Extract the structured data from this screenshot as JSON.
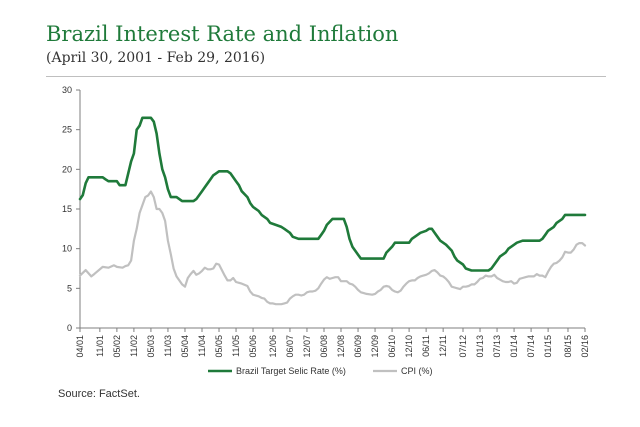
{
  "title": "Brazil Interest Rate and Inflation",
  "subtitle": "(April 30, 2001 - Feb 29, 2016)",
  "source": "Source: FactSet.",
  "colors": {
    "selic": "#1f7a3a",
    "cpi": "#c0c0c0",
    "title": "#1f7a3a",
    "axis": "#7f7f7f"
  },
  "chart_data": {
    "type": "line",
    "ylim": [
      0,
      30
    ],
    "yticks": [
      0,
      5,
      10,
      15,
      20,
      25,
      30
    ],
    "xlim": [
      "04/01",
      "02/16"
    ],
    "xticks": [
      "04/01",
      "11/01",
      "05/02",
      "11/02",
      "05/03",
      "11/03",
      "05/04",
      "11/04",
      "05/05",
      "11/05",
      "05/06",
      "12/06",
      "06/07",
      "12/07",
      "06/08",
      "12/08",
      "06/09",
      "12/09",
      "06/10",
      "12/10",
      "06/11",
      "12/11",
      "07/12",
      "01/13",
      "07/13",
      "01/14",
      "07/14",
      "01/15",
      "08/15",
      "02/16"
    ],
    "legend_position": "bottom",
    "grid": false,
    "series": [
      {
        "name": "Brazil Target Selic Rate (%)",
        "color": "#1f7a3a",
        "points": [
          [
            "04/01",
            16.25
          ],
          [
            "05/01",
            16.75
          ],
          [
            "06/01",
            18.25
          ],
          [
            "07/01",
            19.0
          ],
          [
            "10/01",
            19.0
          ],
          [
            "12/01",
            19.0
          ],
          [
            "01/02",
            18.75
          ],
          [
            "02/02",
            18.5
          ],
          [
            "05/02",
            18.5
          ],
          [
            "06/02",
            18.0
          ],
          [
            "08/02",
            18.0
          ],
          [
            "10/02",
            21.0
          ],
          [
            "11/02",
            22.0
          ],
          [
            "12/02",
            25.0
          ],
          [
            "01/03",
            25.5
          ],
          [
            "02/03",
            26.5
          ],
          [
            "05/03",
            26.5
          ],
          [
            "06/03",
            26.0
          ],
          [
            "07/03",
            24.5
          ],
          [
            "08/03",
            22.0
          ],
          [
            "09/03",
            20.0
          ],
          [
            "10/03",
            19.0
          ],
          [
            "11/03",
            17.5
          ],
          [
            "12/03",
            16.5
          ],
          [
            "02/04",
            16.5
          ],
          [
            "03/04",
            16.25
          ],
          [
            "04/04",
            16.0
          ],
          [
            "08/04",
            16.0
          ],
          [
            "09/04",
            16.25
          ],
          [
            "10/04",
            16.75
          ],
          [
            "11/04",
            17.25
          ],
          [
            "12/04",
            17.75
          ],
          [
            "01/05",
            18.25
          ],
          [
            "02/05",
            18.75
          ],
          [
            "03/05",
            19.25
          ],
          [
            "04/05",
            19.5
          ],
          [
            "05/05",
            19.75
          ],
          [
            "08/05",
            19.75
          ],
          [
            "09/05",
            19.5
          ],
          [
            "10/05",
            19.0
          ],
          [
            "11/05",
            18.5
          ],
          [
            "12/05",
            18.0
          ],
          [
            "01/06",
            17.25
          ],
          [
            "03/06",
            16.5
          ],
          [
            "04/06",
            15.75
          ],
          [
            "05/06",
            15.25
          ],
          [
            "07/06",
            14.75
          ],
          [
            "08/06",
            14.25
          ],
          [
            "10/06",
            13.75
          ],
          [
            "11/06",
            13.25
          ],
          [
            "01/07",
            13.0
          ],
          [
            "03/07",
            12.75
          ],
          [
            "04/07",
            12.5
          ],
          [
            "06/07",
            12.0
          ],
          [
            "07/07",
            11.5
          ],
          [
            "09/07",
            11.25
          ],
          [
            "04/08",
            11.25
          ],
          [
            "05/08",
            11.75
          ],
          [
            "06/08",
            12.25
          ],
          [
            "07/08",
            13.0
          ],
          [
            "09/08",
            13.75
          ],
          [
            "01/09",
            13.75
          ],
          [
            "02/09",
            12.75
          ],
          [
            "03/09",
            11.25
          ],
          [
            "04/09",
            10.25
          ],
          [
            "06/09",
            9.25
          ],
          [
            "07/09",
            8.75
          ],
          [
            "03/10",
            8.75
          ],
          [
            "04/10",
            9.5
          ],
          [
            "06/10",
            10.25
          ],
          [
            "07/10",
            10.75
          ],
          [
            "12/10",
            10.75
          ],
          [
            "01/11",
            11.25
          ],
          [
            "03/11",
            11.75
          ],
          [
            "04/11",
            12.0
          ],
          [
            "06/11",
            12.25
          ],
          [
            "07/11",
            12.5
          ],
          [
            "08/11",
            12.5
          ],
          [
            "09/11",
            12.0
          ],
          [
            "10/11",
            11.5
          ],
          [
            "11/11",
            11.0
          ],
          [
            "01/12",
            10.5
          ],
          [
            "03/12",
            9.75
          ],
          [
            "04/12",
            9.0
          ],
          [
            "05/12",
            8.5
          ],
          [
            "07/12",
            8.0
          ],
          [
            "08/12",
            7.5
          ],
          [
            "10/12",
            7.25
          ],
          [
            "04/13",
            7.25
          ],
          [
            "05/13",
            7.5
          ],
          [
            "07/13",
            8.5
          ],
          [
            "08/13",
            9.0
          ],
          [
            "10/13",
            9.5
          ],
          [
            "11/13",
            10.0
          ],
          [
            "01/14",
            10.5
          ],
          [
            "02/14",
            10.75
          ],
          [
            "04/14",
            11.0
          ],
          [
            "10/14",
            11.0
          ],
          [
            "11/14",
            11.25
          ],
          [
            "12/14",
            11.75
          ],
          [
            "01/15",
            12.25
          ],
          [
            "03/15",
            12.75
          ],
          [
            "04/15",
            13.25
          ],
          [
            "06/15",
            13.75
          ],
          [
            "07/15",
            14.25
          ],
          [
            "02/16",
            14.25
          ]
        ]
      },
      {
        "name": "CPI (%)",
        "color": "#c0c0c0",
        "points": [
          [
            "04/01",
            6.6
          ],
          [
            "06/01",
            7.3
          ],
          [
            "08/01",
            6.5
          ],
          [
            "09/01",
            6.8
          ],
          [
            "10/01",
            7.1
          ],
          [
            "12/01",
            7.7
          ],
          [
            "02/02",
            7.6
          ],
          [
            "04/02",
            7.9
          ],
          [
            "05/02",
            7.7
          ],
          [
            "07/02",
            7.6
          ],
          [
            "08/02",
            7.8
          ],
          [
            "09/02",
            7.9
          ],
          [
            "10/02",
            8.5
          ],
          [
            "11/02",
            11.0
          ],
          [
            "12/02",
            12.5
          ],
          [
            "01/03",
            14.5
          ],
          [
            "03/03",
            16.5
          ],
          [
            "04/03",
            16.7
          ],
          [
            "05/03",
            17.2
          ],
          [
            "06/03",
            16.5
          ],
          [
            "07/03",
            15.0
          ],
          [
            "08/03",
            15.0
          ],
          [
            "09/03",
            14.5
          ],
          [
            "10/03",
            13.5
          ],
          [
            "11/03",
            11.0
          ],
          [
            "12/03",
            9.3
          ],
          [
            "01/04",
            7.5
          ],
          [
            "02/04",
            6.5
          ],
          [
            "03/04",
            6.0
          ],
          [
            "04/04",
            5.5
          ],
          [
            "05/04",
            5.2
          ],
          [
            "06/04",
            6.3
          ],
          [
            "07/04",
            6.8
          ],
          [
            "08/04",
            7.2
          ],
          [
            "09/04",
            6.7
          ],
          [
            "10/04",
            6.9
          ],
          [
            "11/04",
            7.2
          ],
          [
            "12/04",
            7.6
          ],
          [
            "01/05",
            7.4
          ],
          [
            "02/05",
            7.4
          ],
          [
            "03/05",
            7.5
          ],
          [
            "04/05",
            8.1
          ],
          [
            "05/05",
            8.0
          ],
          [
            "06/05",
            7.3
          ],
          [
            "07/05",
            6.6
          ],
          [
            "08/05",
            6.0
          ],
          [
            "09/05",
            6.0
          ],
          [
            "10/05",
            6.3
          ],
          [
            "11/05",
            5.8
          ],
          [
            "12/05",
            5.7
          ],
          [
            "01/06",
            5.6
          ],
          [
            "03/06",
            5.3
          ],
          [
            "04/06",
            4.6
          ],
          [
            "05/06",
            4.2
          ],
          [
            "07/06",
            4.0
          ],
          [
            "08/06",
            3.8
          ],
          [
            "09/06",
            3.7
          ],
          [
            "10/06",
            3.3
          ],
          [
            "11/06",
            3.1
          ],
          [
            "12/06",
            3.1
          ],
          [
            "01/07",
            3.0
          ],
          [
            "03/07",
            3.0
          ],
          [
            "04/07",
            3.1
          ],
          [
            "05/07",
            3.2
          ],
          [
            "06/07",
            3.7
          ],
          [
            "07/07",
            4.0
          ],
          [
            "08/07",
            4.2
          ],
          [
            "09/07",
            4.2
          ],
          [
            "10/07",
            4.1
          ],
          [
            "11/07",
            4.2
          ],
          [
            "12/07",
            4.5
          ],
          [
            "01/08",
            4.6
          ],
          [
            "02/08",
            4.6
          ],
          [
            "03/08",
            4.7
          ],
          [
            "04/08",
            5.0
          ],
          [
            "05/08",
            5.6
          ],
          [
            "06/08",
            6.1
          ],
          [
            "07/08",
            6.4
          ],
          [
            "08/08",
            6.2
          ],
          [
            "09/08",
            6.3
          ],
          [
            "10/08",
            6.4
          ],
          [
            "11/08",
            6.4
          ],
          [
            "12/08",
            5.9
          ],
          [
            "02/09",
            5.9
          ],
          [
            "03/09",
            5.6
          ],
          [
            "04/09",
            5.5
          ],
          [
            "05/09",
            5.2
          ],
          [
            "06/09",
            4.8
          ],
          [
            "07/09",
            4.5
          ],
          [
            "08/09",
            4.4
          ],
          [
            "09/09",
            4.3
          ],
          [
            "11/09",
            4.2
          ],
          [
            "12/09",
            4.3
          ],
          [
            "01/10",
            4.6
          ],
          [
            "02/10",
            4.8
          ],
          [
            "03/10",
            5.2
          ],
          [
            "04/10",
            5.3
          ],
          [
            "05/10",
            5.2
          ],
          [
            "06/10",
            4.8
          ],
          [
            "07/10",
            4.6
          ],
          [
            "08/10",
            4.5
          ],
          [
            "09/10",
            4.7
          ],
          [
            "10/10",
            5.2
          ],
          [
            "11/10",
            5.6
          ],
          [
            "12/10",
            5.9
          ],
          [
            "01/11",
            6.0
          ],
          [
            "02/11",
            6.0
          ],
          [
            "03/11",
            6.3
          ],
          [
            "04/11",
            6.5
          ],
          [
            "05/11",
            6.6
          ],
          [
            "06/11",
            6.7
          ],
          [
            "07/11",
            6.9
          ],
          [
            "08/11",
            7.2
          ],
          [
            "09/11",
            7.3
          ],
          [
            "10/11",
            7.0
          ],
          [
            "11/11",
            6.6
          ],
          [
            "12/11",
            6.5
          ],
          [
            "01/12",
            6.2
          ],
          [
            "02/12",
            5.8
          ],
          [
            "03/12",
            5.2
          ],
          [
            "04/12",
            5.1
          ],
          [
            "05/12",
            5.0
          ],
          [
            "06/12",
            4.9
          ],
          [
            "07/12",
            5.2
          ],
          [
            "08/12",
            5.2
          ],
          [
            "09/12",
            5.3
          ],
          [
            "10/12",
            5.5
          ],
          [
            "11/12",
            5.5
          ],
          [
            "12/12",
            5.8
          ],
          [
            "01/13",
            6.2
          ],
          [
            "02/13",
            6.3
          ],
          [
            "03/13",
            6.6
          ],
          [
            "04/13",
            6.5
          ],
          [
            "05/13",
            6.5
          ],
          [
            "06/13",
            6.7
          ],
          [
            "07/13",
            6.3
          ],
          [
            "08/13",
            6.1
          ],
          [
            "09/13",
            5.9
          ],
          [
            "10/13",
            5.8
          ],
          [
            "11/13",
            5.8
          ],
          [
            "12/13",
            5.9
          ],
          [
            "01/14",
            5.6
          ],
          [
            "02/14",
            5.7
          ],
          [
            "03/14",
            6.2
          ],
          [
            "04/14",
            6.3
          ],
          [
            "05/14",
            6.4
          ],
          [
            "06/14",
            6.5
          ],
          [
            "07/14",
            6.5
          ],
          [
            "08/14",
            6.5
          ],
          [
            "09/14",
            6.8
          ],
          [
            "10/14",
            6.6
          ],
          [
            "11/14",
            6.6
          ],
          [
            "12/14",
            6.4
          ],
          [
            "01/15",
            7.1
          ],
          [
            "02/15",
            7.7
          ],
          [
            "03/15",
            8.1
          ],
          [
            "04/15",
            8.2
          ],
          [
            "05/15",
            8.5
          ],
          [
            "06/15",
            8.9
          ],
          [
            "07/15",
            9.6
          ],
          [
            "08/15",
            9.5
          ],
          [
            "09/15",
            9.5
          ],
          [
            "10/15",
            9.9
          ],
          [
            "11/15",
            10.5
          ],
          [
            "12/15",
            10.7
          ],
          [
            "01/16",
            10.7
          ],
          [
            "02/16",
            10.4
          ]
        ]
      }
    ]
  }
}
